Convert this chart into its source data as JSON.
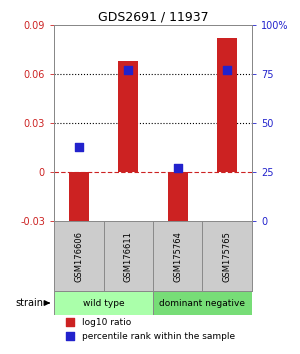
{
  "title": "GDS2691 / 11937",
  "samples": [
    "GSM176606",
    "GSM176611",
    "GSM175764",
    "GSM175765"
  ],
  "log10_ratio": [
    -0.034,
    0.068,
    -0.032,
    0.082
  ],
  "percentile_rank": [
    38,
    77,
    27,
    77
  ],
  "groups": [
    {
      "label": "wild type",
      "color": "#aaffaa",
      "samples": [
        0,
        1
      ]
    },
    {
      "label": "dominant negative",
      "color": "#77dd77",
      "samples": [
        2,
        3
      ]
    }
  ],
  "ylim_left": [
    -0.03,
    0.09
  ],
  "ylim_right": [
    0,
    100
  ],
  "yticks_left": [
    -0.03,
    0,
    0.03,
    0.06,
    0.09
  ],
  "yticks_right": [
    0,
    25,
    50,
    75,
    100
  ],
  "ytick_labels_left": [
    "-0.03",
    "0",
    "0.03",
    "0.06",
    "0.09"
  ],
  "ytick_labels_right": [
    "0",
    "25",
    "50",
    "75",
    "100%"
  ],
  "hlines_dotted": [
    0.03,
    0.06
  ],
  "hline_dashdot": 0,
  "bar_color": "#cc2222",
  "dot_color": "#2222cc",
  "bar_width": 0.4,
  "dot_size": 40,
  "strain_label": "strain",
  "legend_bar_label": "log10 ratio",
  "legend_dot_label": "percentile rank within the sample",
  "background_color": "#ffffff",
  "plot_bg_color": "#ffffff",
  "label_color_left": "#cc2222",
  "label_color_right": "#2222cc",
  "sample_box_color": "#cccccc",
  "sample_box_border": "#888888"
}
